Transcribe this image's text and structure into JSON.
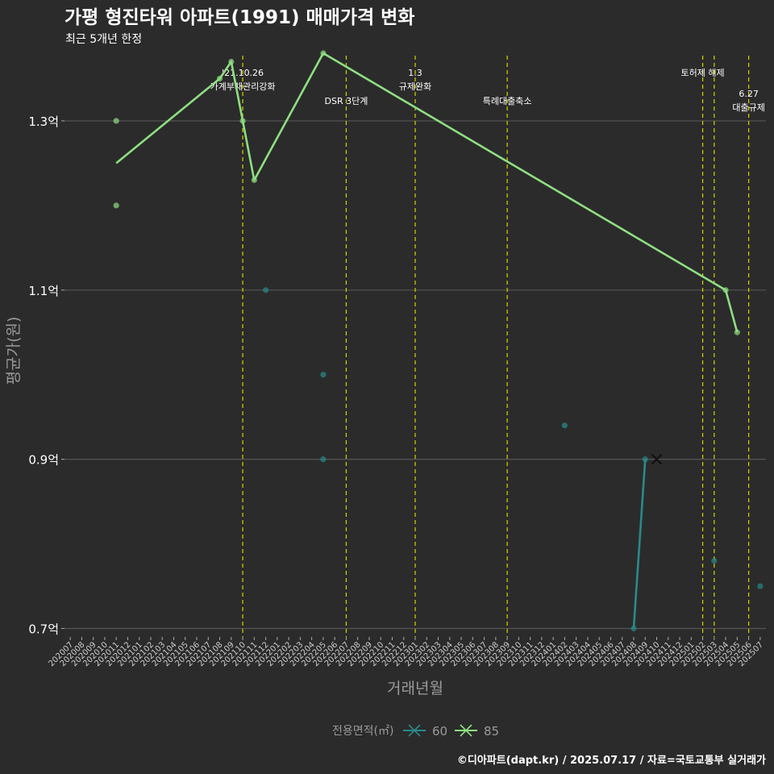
{
  "chart_data": {
    "type": "line",
    "title": "가평 형진타워 아파트(1991) 매매가격 변화",
    "subtitle": "최근 5개년 한정",
    "xlabel": "거래년월",
    "ylabel": "평균가(원)",
    "yticks": [
      {
        "value": 0.7,
        "label": "0.7억"
      },
      {
        "value": 0.9,
        "label": "0.9억"
      },
      {
        "value": 1.1,
        "label": "1.1억"
      },
      {
        "value": 1.3,
        "label": "1.3억"
      }
    ],
    "ylim": [
      0.69,
      1.38
    ],
    "months": [
      "202007",
      "202008",
      "202009",
      "202010",
      "202011",
      "202012",
      "202101",
      "202102",
      "202103",
      "202104",
      "202105",
      "202106",
      "202107",
      "202108",
      "202109",
      "202110",
      "202111",
      "202112",
      "202201",
      "202202",
      "202203",
      "202204",
      "202205",
      "202206",
      "202207",
      "202208",
      "202209",
      "202210",
      "202211",
      "202212",
      "202301",
      "202302",
      "202303",
      "202304",
      "202305",
      "202306",
      "202307",
      "202308",
      "202309",
      "202310",
      "202311",
      "202312",
      "202401",
      "202402",
      "202403",
      "202404",
      "202405",
      "202406",
      "202407",
      "202408",
      "202409",
      "202410",
      "202411",
      "202412",
      "202501",
      "202502",
      "202503",
      "202504",
      "202505",
      "202506",
      "202507"
    ],
    "events": [
      {
        "month": "202110",
        "lines": [
          "'21.10.26",
          "가계부채관리강화"
        ],
        "row": 1
      },
      {
        "month": "202207",
        "lines": [
          "DSR 3단계"
        ],
        "row": 2
      },
      {
        "month": "202301",
        "lines": [
          "1.3",
          "규제완화"
        ],
        "row": 1
      },
      {
        "month": "202309",
        "lines": [
          "특례대출축소"
        ],
        "row": 2
      },
      {
        "month": "202502",
        "lines": [
          "토허제 해제"
        ],
        "row": 1
      },
      {
        "month": "202503",
        "lines": [],
        "row": 1
      },
      {
        "month": "202506",
        "lines": [
          "6.27",
          "대출규제"
        ],
        "row": 2
      }
    ],
    "series": [
      {
        "name": "60",
        "color": "#2a8a8a",
        "line": [
          [
            "202408",
            0.7
          ],
          [
            "202409",
            0.9
          ]
        ],
        "points": [
          [
            "202112",
            1.1
          ],
          [
            "202205",
            1.0
          ],
          [
            "202205",
            0.9
          ],
          [
            "202402",
            0.94
          ],
          [
            "202408",
            0.7
          ],
          [
            "202409",
            0.9
          ],
          [
            "202503",
            0.78
          ],
          [
            "202507",
            0.75
          ]
        ]
      },
      {
        "name": "85",
        "color": "#8fde82",
        "line": [
          [
            "202011",
            1.25
          ],
          [
            "202108",
            1.35
          ],
          [
            "202109",
            1.37
          ],
          [
            "202110",
            1.3
          ],
          [
            "202111",
            1.23
          ],
          [
            "202205",
            1.38
          ],
          [
            "202504",
            1.1
          ],
          [
            "202505",
            1.05
          ]
        ],
        "points": [
          [
            "202011",
            1.3
          ],
          [
            "202011",
            1.2
          ],
          [
            "202108",
            1.35
          ],
          [
            "202109",
            1.37
          ],
          [
            "202110",
            1.3
          ],
          [
            "202111",
            1.23
          ],
          [
            "202205",
            1.38
          ],
          [
            "202504",
            1.1
          ],
          [
            "202505",
            1.05
          ]
        ]
      }
    ],
    "current_marker": {
      "month": "202410",
      "value": 0.9
    },
    "legend": {
      "title": "전용면적(㎡)",
      "items": [
        "60",
        "85"
      ],
      "position": "bottom"
    }
  },
  "footer": {
    "source": "©디아파트(dapt.kr) / 2025.07.17 / 자료=국토교통부 실거래가"
  },
  "colors": {
    "background": "#2b2b2b",
    "grid": "#555555",
    "event_line": "#d4d400",
    "text": "#ffffff",
    "muted": "#9a9a9a"
  }
}
